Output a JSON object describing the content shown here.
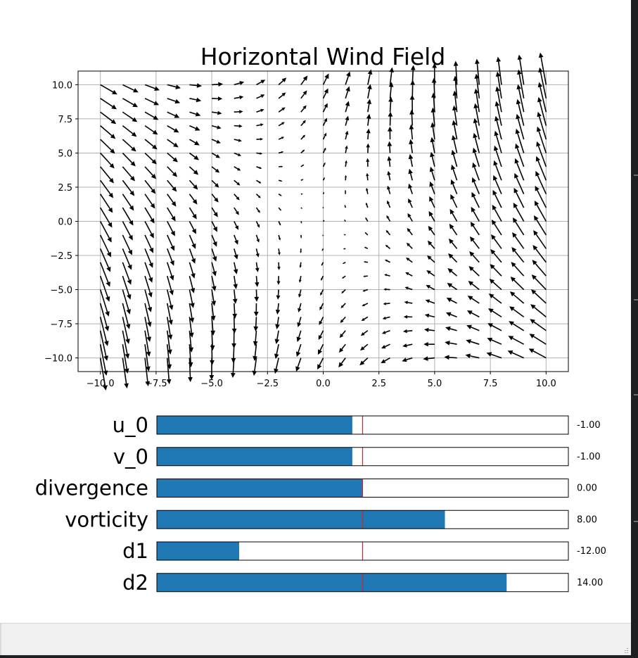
{
  "chart_data": {
    "type": "quiver",
    "title": "Horizontal Wind Field",
    "xlabel": "",
    "ylabel": "",
    "xlim": [
      -11,
      11
    ],
    "ylim": [
      -11,
      11
    ],
    "xticks": [
      "−10.0",
      "−7.5",
      "−5.0",
      "−2.5",
      "0.0",
      "2.5",
      "5.0",
      "7.5",
      "10.0"
    ],
    "yticks": [
      "10.0",
      "7.5",
      "5.0",
      "2.5",
      "0.0",
      "−2.5",
      "−5.0",
      "−7.5",
      "−10.0"
    ],
    "grid": true,
    "field": {
      "formula": "u = u_0 + (divergence + d1)/2*x + (d2 - vorticity)/2*y ; v = v_0 + (d2 + vorticity)/2*x + (divergence - d1)/2*y",
      "x_range": [
        -10,
        10
      ],
      "y_range": [
        -10,
        10
      ],
      "samples": 21
    },
    "colors": {
      "arrow": "#000000",
      "grid": "#b0b0b0",
      "bar_fill": "#1f77b4",
      "init_marker": "#d62728"
    }
  },
  "sliders": [
    {
      "label": "u_0",
      "value": -1,
      "min": -20,
      "max": 20,
      "valinit": 0,
      "value_text": "-1.00"
    },
    {
      "label": "v_0",
      "value": -1,
      "min": -20,
      "max": 20,
      "valinit": 0,
      "value_text": "-1.00"
    },
    {
      "label": "divergence",
      "value": 0,
      "min": -20,
      "max": 20,
      "valinit": 0,
      "value_text": "0.00"
    },
    {
      "label": "vorticity",
      "value": 8,
      "min": -20,
      "max": 20,
      "valinit": 0,
      "value_text": "8.00"
    },
    {
      "label": "d1",
      "value": -12,
      "min": -20,
      "max": 20,
      "valinit": 0,
      "value_text": "-12.00"
    },
    {
      "label": "d2",
      "value": 14,
      "min": -20,
      "max": 20,
      "valinit": 0,
      "value_text": "14.00"
    }
  ]
}
